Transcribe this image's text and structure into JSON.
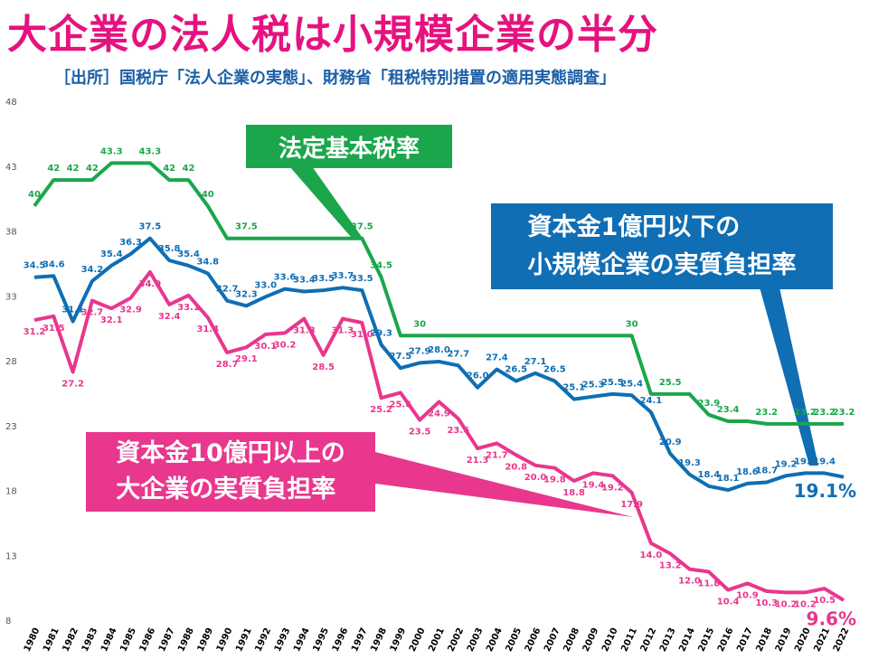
{
  "chart_data": {
    "type": "line",
    "title": "大企業の法人税は小規模企業の半分",
    "subtitle": "［出所］国税庁「法人企業の実態」、財務省「租税特別措置の適用実態調査」",
    "categories": [
      "1980",
      "1981",
      "1982",
      "1983",
      "1984",
      "1985",
      "1986",
      "1987",
      "1988",
      "1989",
      "1990",
      "1991",
      "1992",
      "1993",
      "1994",
      "1995",
      "1996",
      "1997",
      "1998",
      "1999",
      "2000",
      "2001",
      "2002",
      "2003",
      "2004",
      "2005",
      "2006",
      "2007",
      "2008",
      "2009",
      "2010",
      "2011",
      "2012",
      "2013",
      "2014",
      "2015",
      "2016",
      "2017",
      "2018",
      "2019",
      "2020",
      "2021",
      "2022"
    ],
    "ylim": [
      8,
      48
    ],
    "yticks": [
      8,
      13,
      18,
      23,
      28,
      33,
      38,
      43,
      48
    ],
    "grid": false,
    "series": [
      {
        "name": "法定基本税率",
        "color": "#1ba64c",
        "values": [
          40,
          42,
          42,
          42,
          43.3,
          43.3,
          43.3,
          42,
          42,
          40,
          37.5,
          37.5,
          37.5,
          37.5,
          37.5,
          37.5,
          37.5,
          37.5,
          34.5,
          30,
          30,
          30,
          30,
          30,
          30,
          30,
          30,
          30,
          30,
          30,
          30,
          30,
          25.5,
          25.5,
          25.5,
          23.9,
          23.4,
          23.4,
          23.2,
          23.2,
          23.2,
          23.2,
          23.2
        ],
        "value_labels": [
          "40",
          "42",
          "42",
          "42",
          "43.3",
          null,
          "43.3",
          "42",
          "42",
          "40",
          null,
          "37.5",
          null,
          null,
          null,
          null,
          null,
          "37.5",
          "34.5",
          null,
          "30",
          null,
          null,
          null,
          null,
          null,
          null,
          null,
          null,
          null,
          null,
          "30",
          null,
          "25.5",
          null,
          "23.9",
          "23.4",
          null,
          "23.2",
          null,
          "23.2",
          "23.2",
          "23.2"
        ]
      },
      {
        "name": "資本金1億円以下の\n小規模企業の実質負担率",
        "color": "#0f6eb4",
        "values": [
          34.5,
          34.6,
          31.1,
          34.2,
          35.4,
          36.3,
          37.5,
          35.8,
          35.4,
          34.8,
          32.7,
          32.3,
          33.0,
          33.6,
          33.4,
          33.5,
          33.7,
          33.5,
          29.3,
          27.5,
          27.9,
          28.0,
          27.7,
          26.0,
          27.4,
          26.5,
          27.1,
          26.5,
          25.1,
          25.3,
          25.5,
          25.4,
          24.1,
          20.9,
          19.3,
          18.4,
          18.1,
          18.6,
          18.7,
          19.2,
          19.4,
          19.4,
          19.1
        ],
        "value_labels": [
          "34.5",
          "34.6",
          "31.1",
          "34.2",
          "35.4",
          "36.3",
          "37.5",
          "35.8",
          "35.4",
          "34.8",
          "32.7",
          "32.3",
          "33.0",
          "33.6",
          "33.4",
          "33.5",
          "33.7",
          "33.5",
          "29.3",
          "27.5",
          "27.9",
          "28.0",
          "27.7",
          "26.0",
          "27.4",
          "26.5",
          "27.1",
          "26.5",
          "25.1",
          "25.3",
          "25.5",
          "25.4",
          "24.1",
          "20.9",
          "19.3",
          "18.4",
          "18.1",
          "18.6",
          "18.7",
          "19.2",
          "19.4",
          "19.4",
          "19.1%"
        ]
      },
      {
        "name": "資本金10億円以上の\n大企業の実質負担率",
        "color": "#e8378d",
        "values": [
          31.2,
          31.5,
          27.2,
          32.7,
          32.1,
          32.9,
          34.9,
          32.4,
          33.1,
          31.4,
          28.7,
          29.1,
          30.1,
          30.2,
          31.3,
          28.5,
          31.3,
          31.0,
          25.2,
          25.6,
          23.5,
          24.9,
          23.6,
          21.3,
          21.7,
          20.8,
          20.0,
          19.8,
          18.8,
          19.4,
          19.2,
          17.9,
          14.0,
          13.2,
          12.0,
          11.8,
          10.4,
          10.9,
          10.3,
          10.2,
          10.2,
          10.5,
          9.6
        ],
        "value_labels": [
          "31.2",
          "31.5",
          "27.2",
          "32.7",
          "32.1",
          "32.9",
          "34.9",
          "32.4",
          "33.1",
          "31.4",
          "28.7",
          "29.1",
          "30.1",
          "30.2",
          "31.3",
          "28.5",
          "31.3",
          "31.0",
          "25.2",
          "25.6",
          "23.5",
          "24.9",
          "23.6",
          "21.3",
          "21.7",
          "20.8",
          "20.0",
          "19.8",
          "18.8",
          "19.4",
          "19.2",
          "17.9",
          "14.0",
          "13.2",
          "12.0",
          "11.8",
          "10.4",
          "10.9",
          "10.3",
          "10.2",
          "10.2",
          "10.5",
          "9.6%"
        ]
      }
    ]
  }
}
